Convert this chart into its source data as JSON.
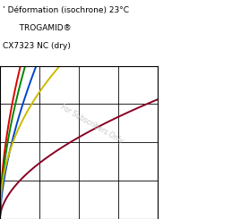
{
  "title_line1": "’ Déformation (isochrone) 23°C",
  "title_line2": "   TROGAMID®",
  "title_line3": "CX7323 NC (dry)",
  "watermark": "For Subscribers Only",
  "xlim": [
    0,
    1.0
  ],
  "ylim": [
    0,
    1.0
  ],
  "grid": true,
  "line_colors": [
    "#dd0000",
    "#008800",
    "#0044cc",
    "#ccbb00",
    "#880022"
  ]
}
